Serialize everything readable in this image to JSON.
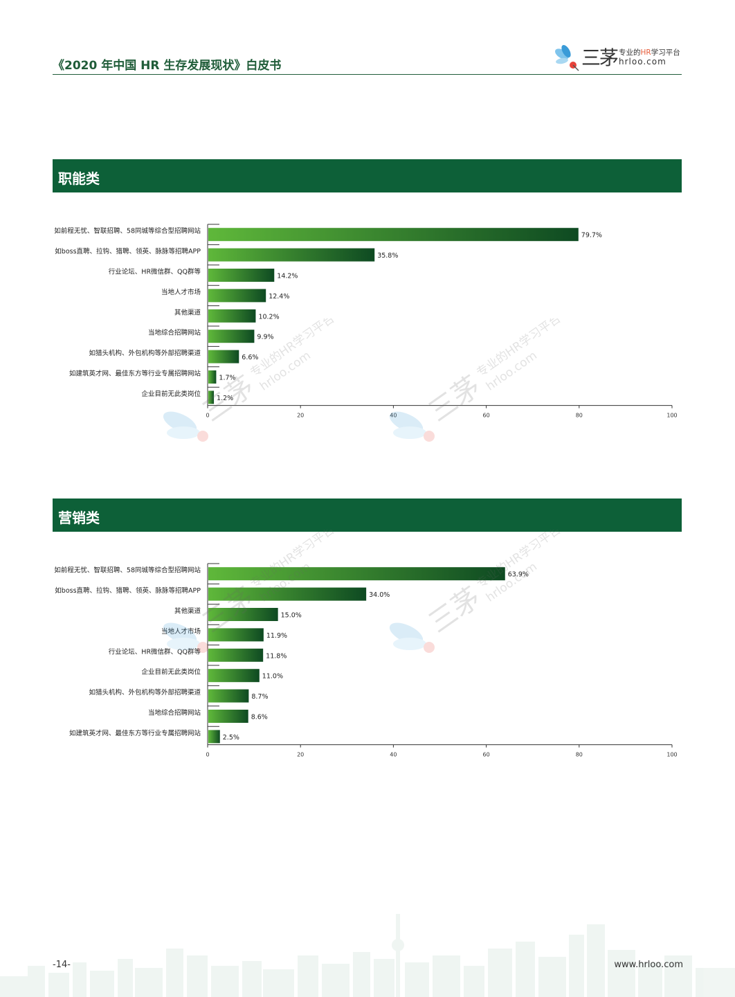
{
  "header": {
    "title": "《2020 年中国 HR 生存发展现状》白皮书"
  },
  "logo": {
    "brand": "三茅",
    "tagline_pre": "专业的",
    "tagline_hl": "HR",
    "tagline_post": "学习平台",
    "site": "hrloo.com"
  },
  "watermark": {
    "brand": "三茅",
    "tagline": "专业的HR学习平台",
    "site": "hrloo.com"
  },
  "sections": [
    {
      "title": "职能类"
    },
    {
      "title": "营销类"
    }
  ],
  "chart_data": [
    {
      "type": "bar",
      "orientation": "horizontal",
      "categories": [
        "如前程无忧、智联招聘、58同城等综合型招聘网站",
        "如boss直聘、拉钩、猎聘、领英、脉脉等招聘APP",
        "行业论坛、HR微信群、QQ群等",
        "当地人才市场",
        "其他渠道",
        "当地综合招聘网站",
        "如猎头机构、外包机构等外部招聘渠道",
        "如建筑英才网、最佳东方等行业专属招聘网站",
        "企业目前无此类岗位"
      ],
      "values": [
        79.7,
        35.8,
        14.2,
        12.4,
        10.2,
        9.9,
        6.6,
        1.7,
        1.2
      ],
      "labels": [
        "79.7%",
        "35.8%",
        "14.2%",
        "12.4%",
        "10.2%",
        "9.9%",
        "6.6%",
        "1.7%",
        "1.2%"
      ],
      "xlim": [
        0,
        100
      ],
      "xticks": [
        "0",
        "20",
        "40",
        "60",
        "80",
        "100"
      ],
      "grid": false,
      "colors": {
        "bar_start": "#5fb83a",
        "bar_end": "#0e4a22"
      }
    },
    {
      "type": "bar",
      "orientation": "horizontal",
      "categories": [
        "如前程无忧、智联招聘、58同城等综合型招聘网站",
        "如boss直聘、拉钩、猎聘、领英、脉脉等招聘APP",
        "其他渠道",
        "当地人才市场",
        "行业论坛、HR微信群、QQ群等",
        "企业目前无此类岗位",
        "如猎头机构、外包机构等外部招聘渠道",
        "当地综合招聘网站",
        "如建筑英才网、最佳东方等行业专属招聘网站"
      ],
      "values": [
        63.9,
        34.0,
        15.0,
        11.9,
        11.8,
        11.0,
        8.7,
        8.6,
        2.5
      ],
      "labels": [
        "63.9%",
        "34.0%",
        "15.0%",
        "11.9%",
        "11.8%",
        "11.0%",
        "8.7%",
        "8.6%",
        "2.5%"
      ],
      "xlim": [
        0,
        100
      ],
      "xticks": [
        "0",
        "20",
        "40",
        "60",
        "80",
        "100"
      ],
      "grid": false,
      "colors": {
        "bar_start": "#5fb83a",
        "bar_end": "#0e4a22"
      }
    }
  ],
  "footer": {
    "page": "-14-",
    "url": "www.hrloo.com"
  }
}
